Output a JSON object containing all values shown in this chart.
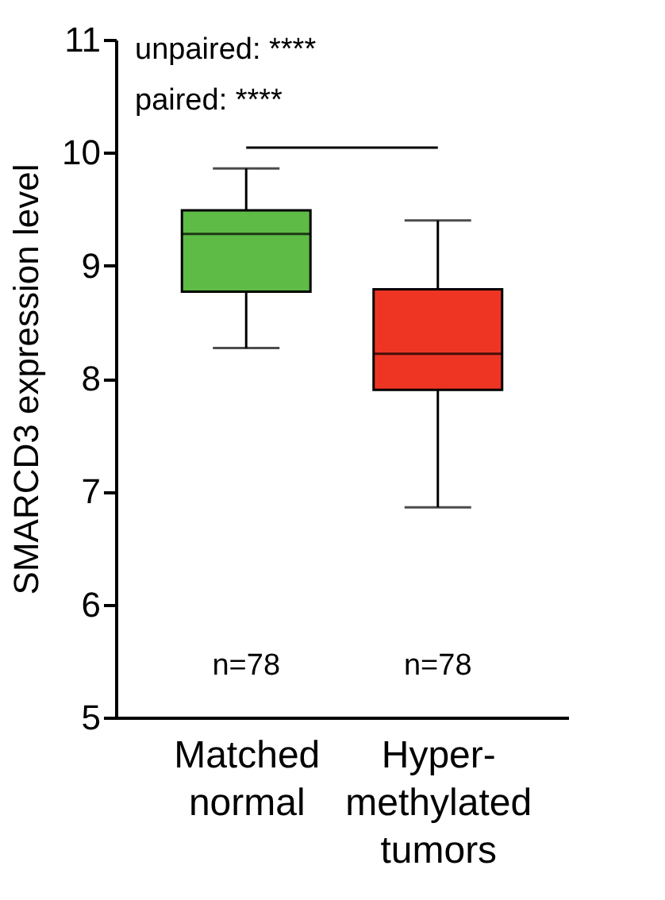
{
  "chart_data": {
    "type": "box",
    "categories": [
      "Matched normal",
      "Hyper-methylated tumors"
    ],
    "boxes": [
      {
        "low": 8.27,
        "q1": 8.77,
        "median": 9.28,
        "q3": 9.49,
        "high": 9.86
      },
      {
        "low": 6.86,
        "q1": 7.9,
        "median": 8.22,
        "q3": 8.79,
        "high": 9.4
      }
    ],
    "colors": [
      "#5dbb46",
      "#ee3524"
    ],
    "ylabel": "SMARCD3 expression level",
    "ylim": [
      5,
      11
    ],
    "yticks": [
      5,
      6,
      7,
      8,
      9,
      10,
      11
    ],
    "annotations": [
      "unpaired: ****",
      "paired: ****",
      "n=78",
      "n=78"
    ]
  }
}
